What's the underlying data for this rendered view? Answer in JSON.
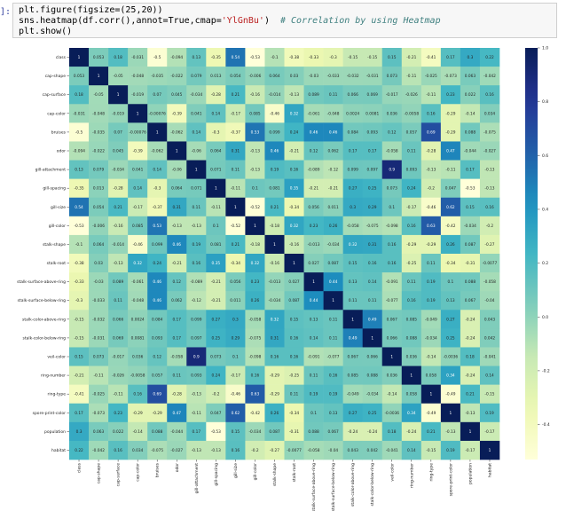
{
  "cell": {
    "prompt": "]:",
    "code": [
      [
        "plt.figure(figsize=(25,20))"
      ],
      [
        "sns.heatmap(df.corr(),annot=True,cmap=",
        "'YlGnBu'",
        ")",
        "# Correlation by using Heatmap"
      ],
      [
        "plt.show()"
      ]
    ]
  },
  "chart_data": {
    "type": "heatmap",
    "cmap": "YlGnBu",
    "categories": [
      "class",
      "cap-shape",
      "cap-surface",
      "cap-color",
      "bruises",
      "odor",
      "gill-attachment",
      "gill-spacing",
      "gill-size",
      "gill-color",
      "stalk-shape",
      "stalk-root",
      "stalk-surface-above-ring",
      "stalk-surface-below-ring",
      "stalk-color-above-ring",
      "stalk-color-below-ring",
      "veil-color",
      "ring-number",
      "ring-type",
      "spore-print-color",
      "population",
      "habitat"
    ],
    "values": [
      [
        1,
        0.053,
        0.18,
        -0.031,
        -0.5,
        -0.094,
        0.13,
        -0.35,
        0.54,
        -0.53,
        -0.1,
        -0.38,
        -0.33,
        -0.3,
        -0.15,
        -0.15,
        0.15,
        -0.21,
        -0.41,
        0.17,
        0.3,
        0.22
      ],
      [
        0.053,
        1,
        -0.05,
        -0.048,
        -0.035,
        -0.022,
        0.079,
        0.013,
        0.054,
        -0.006,
        0.064,
        0.03,
        -0.03,
        -0.033,
        -0.032,
        -0.031,
        0.073,
        -0.11,
        -0.025,
        -0.073,
        0.063,
        -0.042
      ],
      [
        0.18,
        -0.05,
        1,
        -0.019,
        0.07,
        0.045,
        -0.034,
        -0.28,
        0.21,
        -0.16,
        -0.014,
        -0.13,
        0.089,
        0.11,
        0.066,
        0.069,
        -0.017,
        -0.026,
        -0.11,
        0.23,
        0.022,
        0.16
      ],
      [
        -0.031,
        -0.048,
        -0.019,
        1,
        -0.00076,
        -0.39,
        0.041,
        0.14,
        -0.17,
        0.085,
        -0.46,
        0.32,
        -0.061,
        -0.048,
        0.0024,
        0.0081,
        0.036,
        -0.0058,
        0.16,
        -0.29,
        -0.14,
        0.034
      ],
      [
        -0.5,
        -0.035,
        0.07,
        -0.00076,
        1,
        -0.062,
        0.14,
        -0.3,
        -0.37,
        0.53,
        0.099,
        0.24,
        0.46,
        0.46,
        0.084,
        0.093,
        0.12,
        0.057,
        0.69,
        -0.29,
        0.088,
        -0.075
      ],
      [
        -0.094,
        -0.022,
        0.045,
        -0.39,
        -0.062,
        1,
        -0.06,
        0.064,
        0.31,
        -0.13,
        0.46,
        -0.21,
        0.12,
        0.062,
        0.17,
        0.17,
        -0.058,
        0.11,
        -0.28,
        0.47,
        -0.044,
        -0.027
      ],
      [
        0.13,
        0.079,
        -0.034,
        0.041,
        0.14,
        -0.06,
        1,
        0.071,
        0.11,
        -0.13,
        0.19,
        0.16,
        -0.089,
        -0.12,
        0.099,
        0.097,
        0.9,
        0.093,
        -0.13,
        -0.11,
        0.17,
        -0.13
      ],
      [
        -0.35,
        0.013,
        -0.28,
        0.14,
        -0.3,
        0.064,
        0.071,
        1,
        -0.11,
        0.1,
        0.081,
        0.35,
        -0.21,
        -0.21,
        0.27,
        0.25,
        0.073,
        0.24,
        -0.2,
        0.047,
        -0.53,
        -0.13
      ],
      [
        0.54,
        0.054,
        0.21,
        -0.17,
        -0.37,
        0.31,
        0.11,
        -0.11,
        1,
        -0.52,
        0.21,
        -0.34,
        0.056,
        0.011,
        0.3,
        0.29,
        0.1,
        -0.17,
        -0.46,
        0.62,
        0.15,
        0.16
      ],
      [
        -0.53,
        -0.006,
        -0.16,
        0.085,
        0.53,
        -0.13,
        -0.13,
        0.1,
        -0.52,
        1,
        -0.18,
        0.32,
        0.23,
        0.26,
        -0.058,
        -0.075,
        -0.098,
        0.16,
        0.63,
        -0.42,
        -0.034,
        -0.2
      ],
      [
        -0.1,
        0.064,
        -0.014,
        -0.46,
        0.099,
        0.46,
        0.19,
        0.081,
        0.21,
        -0.18,
        1,
        -0.16,
        -0.013,
        -0.034,
        0.32,
        0.31,
        0.16,
        -0.29,
        -0.29,
        0.26,
        0.087,
        -0.27
      ],
      [
        -0.38,
        0.03,
        -0.13,
        0.32,
        0.24,
        -0.21,
        0.16,
        0.35,
        -0.34,
        0.32,
        -0.16,
        1,
        0.027,
        0.087,
        0.15,
        0.16,
        0.16,
        -0.25,
        0.11,
        -0.34,
        -0.31,
        -0.0077
      ],
      [
        -0.33,
        -0.03,
        0.089,
        -0.061,
        0.46,
        0.12,
        -0.089,
        -0.21,
        0.056,
        0.23,
        -0.013,
        0.027,
        1,
        0.44,
        0.13,
        0.14,
        -0.091,
        0.11,
        0.19,
        0.1,
        0.088,
        -0.058
      ],
      [
        -0.3,
        -0.033,
        0.11,
        -0.048,
        0.46,
        0.062,
        -0.12,
        -0.21,
        0.011,
        0.26,
        -0.034,
        0.087,
        0.44,
        1,
        0.11,
        0.11,
        -0.077,
        0.16,
        0.19,
        0.13,
        0.067,
        -0.04
      ],
      [
        -0.15,
        -0.032,
        0.066,
        0.0024,
        0.084,
        0.17,
        0.099,
        0.27,
        0.3,
        -0.058,
        0.32,
        0.15,
        0.13,
        0.11,
        1,
        0.49,
        0.067,
        0.085,
        -0.049,
        0.27,
        -0.24,
        0.043
      ],
      [
        -0.15,
        -0.031,
        0.069,
        0.0081,
        0.093,
        0.17,
        0.097,
        0.25,
        0.29,
        -0.075,
        0.31,
        0.16,
        0.14,
        0.11,
        0.49,
        1,
        0.066,
        0.088,
        -0.034,
        0.25,
        -0.24,
        0.042
      ],
      [
        0.15,
        0.073,
        -0.017,
        0.036,
        0.12,
        -0.058,
        0.9,
        0.073,
        0.1,
        -0.098,
        0.16,
        0.16,
        -0.091,
        -0.077,
        0.067,
        0.066,
        1,
        0.036,
        -0.14,
        -0.0036,
        0.18,
        -0.041
      ],
      [
        -0.21,
        -0.11,
        -0.026,
        -0.0058,
        0.057,
        0.11,
        0.093,
        0.24,
        -0.17,
        0.16,
        -0.29,
        -0.25,
        0.11,
        0.16,
        0.085,
        0.088,
        0.036,
        1,
        0.058,
        0.34,
        -0.24,
        0.14
      ],
      [
        -0.41,
        -0.025,
        -0.11,
        0.16,
        0.69,
        -0.28,
        -0.13,
        -0.2,
        -0.46,
        0.63,
        -0.29,
        0.11,
        0.19,
        0.19,
        -0.049,
        -0.034,
        -0.14,
        0.058,
        1,
        -0.49,
        0.21,
        -0.15
      ],
      [
        0.17,
        -0.073,
        0.23,
        -0.29,
        -0.29,
        0.47,
        -0.11,
        0.047,
        0.62,
        -0.42,
        0.26,
        -0.34,
        0.1,
        0.13,
        0.27,
        0.25,
        -0.0036,
        0.34,
        -0.49,
        1,
        -0.13,
        0.19
      ],
      [
        0.3,
        0.063,
        0.022,
        -0.14,
        0.088,
        -0.044,
        0.17,
        -0.53,
        0.15,
        -0.034,
        0.087,
        -0.31,
        0.088,
        0.067,
        -0.24,
        -0.24,
        0.18,
        -0.24,
        0.21,
        -0.13,
        1,
        -0.17
      ],
      [
        0.22,
        -0.042,
        0.16,
        0.034,
        -0.075,
        -0.027,
        -0.13,
        -0.13,
        0.16,
        -0.2,
        -0.27,
        -0.0077,
        -0.058,
        -0.04,
        0.043,
        0.042,
        -0.041,
        0.14,
        -0.15,
        0.19,
        -0.17,
        1
      ]
    ],
    "clim": [
      -0.53,
      1
    ],
    "cticks": [
      {
        "value": 1,
        "label": "1.0"
      },
      0.8,
      0.6,
      0.4,
      0.2,
      {
        "value": 0,
        "label": "0.0"
      },
      -0.2,
      -0.4
    ]
  }
}
